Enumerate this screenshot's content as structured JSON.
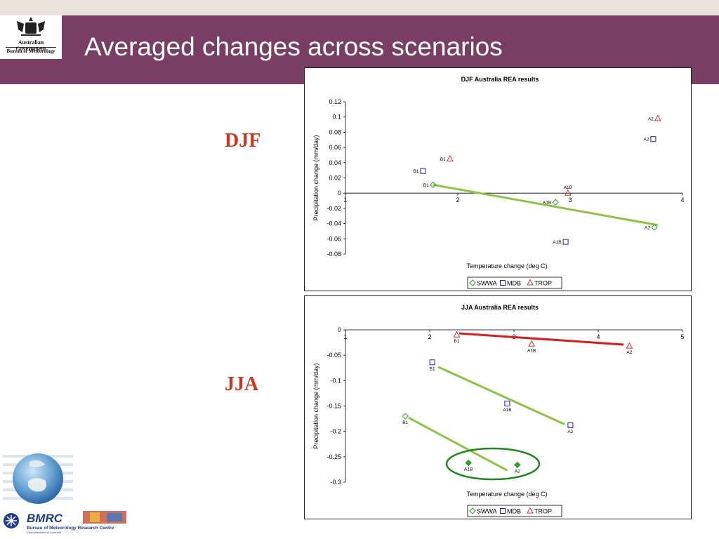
{
  "slide": {
    "title": "Averaged changes across scenarios",
    "org_line1": "Australian Government",
    "org_line2": "Bureau of Meteorology",
    "label_djf": "DJF",
    "label_jja": "JJA",
    "footer_brand": "BMRC",
    "footer_org": "Bureau of Meteorology Research Centre",
    "footer_sub": "Commonwealth of Australia"
  },
  "colors": {
    "banner": "#7a3d63",
    "season_label": "#d2341f",
    "swwa": "#2e9e2e",
    "mdb": "#2020c0",
    "trop": "#d83030",
    "trend_green": "#8cc63f",
    "trend_red": "#e01818",
    "circle": "#1a8a1a"
  },
  "chart_data": [
    {
      "type": "scatter",
      "title": "DJF Australia REA results",
      "xlabel": "Temperature change (deg C)",
      "ylabel": "Precipitation change (mm/day)",
      "xlim": [
        1,
        4
      ],
      "ylim": [
        -0.08,
        0.12
      ],
      "xticks": [
        1,
        2,
        3,
        4
      ],
      "yticks": [
        "0.12",
        "0.1",
        "0.08",
        "0.06",
        "0.04",
        "0.02",
        "0",
        "-0.02",
        "-0.04",
        "-0.06",
        "-0.08"
      ],
      "legend": [
        "SWWA",
        "MDB",
        "TROP"
      ],
      "legend_position": "bottom",
      "series": [
        {
          "name": "SWWA",
          "marker": "diamond",
          "points": [
            {
              "label": "B1",
              "x": 1.78,
              "y": 0.011
            },
            {
              "label": "A1B",
              "x": 2.87,
              "y": -0.012
            },
            {
              "label": "A2",
              "x": 3.75,
              "y": -0.045
            }
          ]
        },
        {
          "name": "MDB",
          "marker": "square",
          "points": [
            {
              "label": "B1",
              "x": 1.69,
              "y": 0.029
            },
            {
              "label": "A1B",
              "x": 2.96,
              "y": -0.064
            },
            {
              "label": "A2",
              "x": 3.74,
              "y": 0.071
            }
          ]
        },
        {
          "name": "TROP",
          "marker": "triangle",
          "points": [
            {
              "label": "B1",
              "x": 1.93,
              "y": 0.045
            },
            {
              "label": "A1B",
              "x": 2.98,
              "y": 0.0
            },
            {
              "label": "A2",
              "x": 3.78,
              "y": 0.098
            }
          ]
        }
      ],
      "trendlines": [
        {
          "series": "SWWA",
          "x": [
            1.78,
            3.78
          ],
          "y": [
            0.011,
            -0.042
          ]
        }
      ]
    },
    {
      "type": "scatter",
      "title": "JJA Australia REA results",
      "xlabel": "Temperature change (deg C)",
      "ylabel": "Precipitation change (mm/day)",
      "xlim": [
        1,
        5
      ],
      "ylim": [
        -0.3,
        0
      ],
      "xticks": [
        1,
        2,
        3,
        4,
        5
      ],
      "yticks": [
        "0",
        "-0.05",
        "-0.1",
        "-0.15",
        "-0.2",
        "-0.25",
        "-0.3"
      ],
      "legend": [
        "SWWA",
        "MDB",
        "TROP"
      ],
      "legend_position": "bottom",
      "series": [
        {
          "name": "SWWA",
          "marker": "diamond",
          "points": [
            {
              "label": "B1",
              "x": 1.71,
              "y": -0.17
            },
            {
              "label": "A1B",
              "x": 2.46,
              "y": -0.262,
              "filled": true
            },
            {
              "label": "A2",
              "x": 3.04,
              "y": -0.266,
              "filled": true
            }
          ]
        },
        {
          "name": "MDB",
          "marker": "square",
          "points": [
            {
              "label": "B1",
              "x": 2.03,
              "y": -0.064
            },
            {
              "label": "A1B",
              "x": 2.92,
              "y": -0.145
            },
            {
              "label": "A2",
              "x": 3.67,
              "y": -0.188
            }
          ]
        },
        {
          "name": "TROP",
          "marker": "triangle",
          "points": [
            {
              "label": "B1",
              "x": 2.32,
              "y": -0.01
            },
            {
              "label": "A1B",
              "x": 3.21,
              "y": -0.028
            },
            {
              "label": "A2",
              "x": 4.37,
              "y": -0.032
            }
          ]
        }
      ],
      "trendlines": [
        {
          "series": "TROP",
          "x": [
            2.35,
            4.3
          ],
          "y": [
            -0.007,
            -0.029
          ]
        },
        {
          "series": "MDB",
          "x": [
            2.1,
            3.6
          ],
          "y": [
            -0.073,
            -0.186
          ]
        },
        {
          "series": "SWWA",
          "x": [
            1.75,
            2.92
          ],
          "y": [
            -0.173,
            -0.277
          ]
        }
      ],
      "highlight": {
        "shape": "ellipse",
        "center_x": 2.75,
        "center_y": -0.264
      }
    }
  ]
}
